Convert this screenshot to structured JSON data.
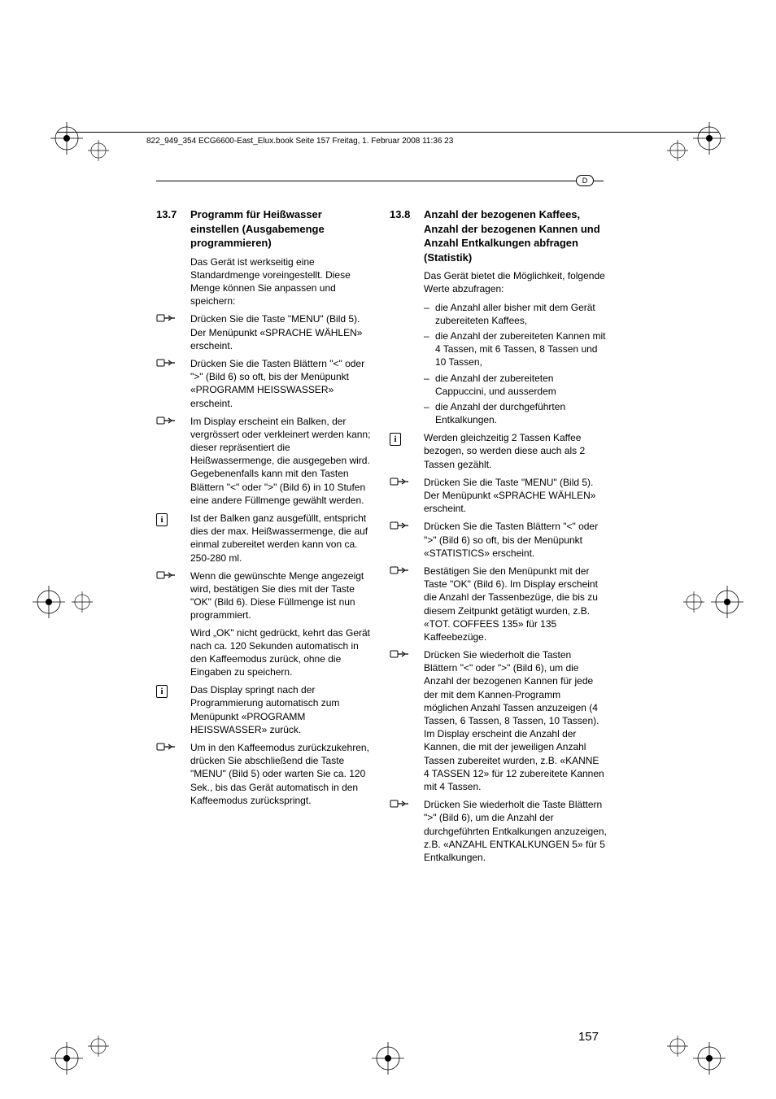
{
  "header": {
    "runningHead": "822_949_354 ECG6600-East_Elux.book  Seite 157  Freitag, 1. Februar 2008  11:36 23"
  },
  "langBadge": "D",
  "left": {
    "sectionNum": "13.7",
    "sectionTitle": "Programm für Heißwasser einstellen (Ausgabemenge programmieren)",
    "intro": "Das Gerät ist werkseitig eine Standardmenge voreingestellt. Diese Menge können Sie anpassen und speichern:",
    "steps": [
      {
        "icon": "hand",
        "paras": [
          "Drücken Sie die Taste \"MENU\" (Bild 5). Der Menüpunkt «SPRACHE WÄHLEN» erscheint."
        ]
      },
      {
        "icon": "hand",
        "paras": [
          "Drücken Sie die Tasten Blättern \"<\" oder \">\" (Bild 6) so oft, bis der Menüpunkt «PROGRAMM HEISSWASSER» erscheint."
        ]
      },
      {
        "icon": "hand",
        "paras": [
          "Im Display erscheint ein Balken, der vergrössert oder verkleinert werden kann; dieser repräsentiert die Heißwassermenge, die ausgegeben wird. Gegebenenfalls kann mit den Tasten Blättern \"<\" oder \">\" (Bild 6) in 10 Stufen eine andere Füllmenge gewählt werden."
        ]
      },
      {
        "icon": "info",
        "paras": [
          "Ist der Balken ganz ausgefüllt, entspricht dies der max. Heißwassermenge, die auf einmal zubereitet werden kann von ca. 250-280 ml."
        ]
      },
      {
        "icon": "hand",
        "paras": [
          "Wenn die gewünschte Menge angezeigt wird, bestätigen Sie dies mit der Taste \"OK\" (Bild 6). Diese Füllmenge ist nun programmiert.",
          "Wird „OK\" nicht gedrückt, kehrt das Gerät nach ca. 120 Sekunden automatisch in den Kaffeemodus zurück, ohne die Eingaben zu speichern."
        ]
      },
      {
        "icon": "info",
        "paras": [
          "Das Display springt nach der Programmierung automatisch zum Menüpunkt «PROGRAMM HEISSWASSER» zurück."
        ]
      },
      {
        "icon": "hand",
        "paras": [
          "Um in den Kaffeemodus zurückzukehren, drücken Sie abschließend die Taste \"MENU\" (Bild 5) oder warten Sie ca. 120 Sek., bis das Gerät automatisch in den Kaffeemodus zurückspringt."
        ]
      }
    ]
  },
  "right": {
    "sectionNum": "13.8",
    "sectionTitle": "Anzahl der bezogenen Kaffees, Anzahl der bezogenen Kannen und Anzahl Entkalkungen abfragen (Statistik)",
    "intro": "Das Gerät bietet die Möglichkeit, folgende Werte abzufragen:",
    "bullets": [
      "die Anzahl aller bisher mit dem Gerät zubereiteten Kaffees,",
      "die Anzahl der zubereiteten Kannen mit 4 Tassen, mit 6 Tassen, 8 Tassen und 10 Tassen,",
      "die Anzahl der zubereiteten Cappuccini, und ausserdem",
      "die Anzahl der durchgeführten Entkalkungen."
    ],
    "steps": [
      {
        "icon": "info",
        "paras": [
          "Werden gleichzeitig 2 Tassen Kaffee bezogen, so werden diese auch als 2 Tassen gezählt."
        ]
      },
      {
        "icon": "hand",
        "paras": [
          "Drücken Sie die Taste \"MENU\" (Bild 5). Der Menüpunkt «SPRACHE WÄHLEN» erscheint."
        ]
      },
      {
        "icon": "hand",
        "paras": [
          "Drücken Sie die Tasten Blättern \"<\" oder \">\" (Bild 6) so oft, bis der Menüpunkt «STATISTICS» erscheint."
        ]
      },
      {
        "icon": "hand",
        "paras": [
          "Bestätigen Sie den Menüpunkt mit der Taste \"OK\" (Bild 6). Im Display erscheint die Anzahl der Tassenbezüge, die bis zu diesem Zeitpunkt getätigt wurden, z.B. «TOT. COFFEES 135» für 135 Kaffeebezüge."
        ]
      },
      {
        "icon": "hand",
        "paras": [
          "Drücken Sie wiederholt die Tasten Blättern \"<\" oder \">\" (Bild 6), um die Anzahl der bezogenen Kannen für jede der mit dem Kannen-Programm möglichen Anzahl Tassen anzuzeigen (4 Tassen, 6 Tassen, 8 Tassen, 10 Tassen). Im Display erscheint die Anzahl der Kannen, die mit der jeweiligen Anzahl Tassen zubereitet wurden, z.B. «KANNE 4 TASSEN   12» für 12 zubereitete Kannen mit 4 Tassen."
        ]
      },
      {
        "icon": "hand",
        "paras": [
          "Drücken Sie wiederholt die Taste Blättern \">\" (Bild 6), um die Anzahl der durchgeführten Entkalkungen anzuzeigen, z.B. «ANZAHL ENTKALKUNGEN 5» für 5 Entkalkungen."
        ]
      }
    ]
  },
  "pageNumber": "157",
  "style": {
    "bg": "#ffffff",
    "text": "#000000",
    "bodyFontSize": 12,
    "headingFontSize": 13,
    "headerFontSize": 10,
    "pageNumFontSize": 15
  }
}
